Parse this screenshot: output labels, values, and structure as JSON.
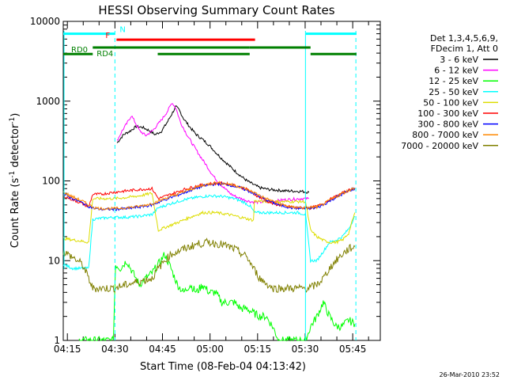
{
  "chart_data": {
    "type": "line",
    "title": "HESSI Observing Summary Count Rates",
    "xlabel": "Start Time (08-Feb-04 04:13:42)",
    "ylabel": "Count Rate (s",
    "ylabel_sup": "-1",
    "ylabel_tail": " detector",
    "ylabel_sup2": "-1",
    "ylabel_end": ")",
    "x_unit": "minutes after 04:13:42",
    "xlim": [
      0,
      100
    ],
    "ylim": [
      1,
      10000
    ],
    "yscale": "log",
    "x_ticks": [
      {
        "v": 1.3,
        "label": "04:15"
      },
      {
        "v": 16.3,
        "label": "04:30"
      },
      {
        "v": 31.3,
        "label": "04:45"
      },
      {
        "v": 46.3,
        "label": "05:00"
      },
      {
        "v": 61.3,
        "label": "05:15"
      },
      {
        "v": 76.3,
        "label": "05:30"
      },
      {
        "v": 91.3,
        "label": "05:45"
      }
    ],
    "y_ticks": [
      {
        "v": 1,
        "label": "1"
      },
      {
        "v": 10,
        "label": "10"
      },
      {
        "v": 100,
        "label": "100"
      },
      {
        "v": 1000,
        "label": "1000"
      },
      {
        "v": 10000,
        "label": "10000"
      }
    ],
    "legend": {
      "placement": "right",
      "header": [
        "Det 1,3,4,5,6,9,",
        "FDecim 1, Att 0"
      ]
    },
    "series": [
      {
        "name": "3 - 6 keV",
        "color": "#000000",
        "points": [
          [
            17.0,
            300
          ],
          [
            19,
            380
          ],
          [
            21,
            420
          ],
          [
            23,
            480
          ],
          [
            25,
            470
          ],
          [
            27,
            430
          ],
          [
            29,
            380
          ],
          [
            31,
            420
          ],
          [
            33,
            560
          ],
          [
            34.5,
            720
          ],
          [
            35.5,
            850
          ],
          [
            36.5,
            780
          ],
          [
            38,
            600
          ],
          [
            40,
            470
          ],
          [
            42,
            380
          ],
          [
            44,
            330
          ],
          [
            46,
            280
          ],
          [
            48,
            230
          ],
          [
            50,
            190
          ],
          [
            52,
            160
          ],
          [
            54,
            135
          ],
          [
            56,
            115
          ],
          [
            58,
            100
          ],
          [
            60,
            90
          ],
          [
            62,
            82
          ],
          [
            65,
            78
          ],
          [
            70,
            75
          ],
          [
            75,
            74
          ],
          [
            77.5,
            72
          ]
        ]
      },
      {
        "name": "6 - 12 keV",
        "color": "#ff00ff",
        "points": [
          [
            17.0,
            320
          ],
          [
            18.5,
            420
          ],
          [
            20,
            520
          ],
          [
            21.5,
            660
          ],
          [
            22.5,
            560
          ],
          [
            24,
            430
          ],
          [
            26,
            370
          ],
          [
            28,
            420
          ],
          [
            30,
            520
          ],
          [
            31.5,
            620
          ],
          [
            33,
            760
          ],
          [
            34.3,
            960
          ],
          [
            35.5,
            820
          ],
          [
            37,
            540
          ],
          [
            39,
            380
          ],
          [
            41,
            280
          ],
          [
            43,
            210
          ],
          [
            45,
            160
          ],
          [
            47,
            120
          ],
          [
            49,
            95
          ],
          [
            51,
            80
          ],
          [
            53,
            68
          ],
          [
            55,
            62
          ],
          [
            57,
            58
          ],
          [
            59,
            55
          ],
          [
            61,
            54
          ],
          [
            65,
            55
          ],
          [
            70,
            58
          ],
          [
            75,
            60
          ],
          [
            77.5,
            60
          ]
        ]
      },
      {
        "name": "12 - 25 keV",
        "color": "#00ff00",
        "points": [
          [
            5,
            1
          ],
          [
            10,
            1
          ],
          [
            15.8,
            1
          ],
          [
            16.5,
            9
          ],
          [
            18,
            8
          ],
          [
            20,
            10
          ],
          [
            22,
            7
          ],
          [
            24,
            5
          ],
          [
            26,
            6
          ],
          [
            28,
            7
          ],
          [
            30,
            9
          ],
          [
            32,
            12
          ],
          [
            34,
            8
          ],
          [
            36,
            5
          ],
          [
            38,
            4
          ],
          [
            40,
            5
          ],
          [
            42,
            4
          ],
          [
            44,
            5
          ],
          [
            46,
            4
          ],
          [
            48,
            4
          ],
          [
            50,
            3
          ],
          [
            52,
            3
          ],
          [
            54,
            3
          ],
          [
            56,
            2.5
          ],
          [
            58,
            2.5
          ],
          [
            60,
            2.2
          ],
          [
            62,
            2
          ],
          [
            64,
            2
          ],
          [
            66,
            1.5
          ],
          [
            68,
            1
          ],
          [
            72,
            1
          ],
          [
            76.5,
            1
          ],
          [
            78,
            1.5
          ],
          [
            80,
            2
          ],
          [
            82,
            3
          ],
          [
            84,
            2
          ],
          [
            86,
            1.5
          ],
          [
            88,
            1.5
          ],
          [
            90,
            1.8
          ],
          [
            92,
            1.6
          ]
        ]
      },
      {
        "name": "25 - 50 keV",
        "color": "#00ffff",
        "points": [
          [
            0,
            9
          ],
          [
            3,
            8
          ],
          [
            6,
            8
          ],
          [
            8,
            8
          ],
          [
            9.3,
            33
          ],
          [
            12,
            34
          ],
          [
            16,
            35
          ],
          [
            20,
            35
          ],
          [
            24,
            36
          ],
          [
            28,
            38
          ],
          [
            30,
            46
          ],
          [
            34,
            52
          ],
          [
            38,
            58
          ],
          [
            42,
            62
          ],
          [
            46,
            65
          ],
          [
            50,
            64
          ],
          [
            54,
            60
          ],
          [
            57,
            54
          ],
          [
            59,
            48
          ],
          [
            60.3,
            40
          ],
          [
            62,
            40
          ],
          [
            66,
            40
          ],
          [
            70,
            40
          ],
          [
            74,
            40
          ],
          [
            76.4,
            38
          ],
          [
            78,
            10
          ],
          [
            80,
            10
          ],
          [
            82,
            13
          ],
          [
            84,
            17
          ],
          [
            86,
            18
          ],
          [
            88,
            20
          ],
          [
            90,
            25
          ],
          [
            92,
            36
          ]
        ]
      },
      {
        "name": "50 - 100 keV",
        "color": "#dddd00",
        "points": [
          [
            0,
            19
          ],
          [
            4,
            18
          ],
          [
            8,
            17
          ],
          [
            9.3,
            60
          ],
          [
            12,
            60
          ],
          [
            16,
            60
          ],
          [
            20,
            62
          ],
          [
            24,
            65
          ],
          [
            28,
            70
          ],
          [
            30,
            24
          ],
          [
            32,
            26
          ],
          [
            36,
            30
          ],
          [
            40,
            35
          ],
          [
            44,
            40
          ],
          [
            48,
            40
          ],
          [
            52,
            38
          ],
          [
            56,
            35
          ],
          [
            60,
            32
          ],
          [
            60.3,
            56
          ],
          [
            64,
            55
          ],
          [
            68,
            55
          ],
          [
            72,
            55
          ],
          [
            76.4,
            55
          ],
          [
            78,
            24
          ],
          [
            80,
            20
          ],
          [
            82,
            18
          ],
          [
            84,
            17
          ],
          [
            86,
            17
          ],
          [
            88,
            18
          ],
          [
            90,
            22
          ],
          [
            92,
            40
          ]
        ]
      },
      {
        "name": "100 - 300 keV",
        "color": "#ff0000",
        "points": [
          [
            0,
            65
          ],
          [
            3,
            58
          ],
          [
            6,
            52
          ],
          [
            8,
            47
          ],
          [
            9.3,
            68
          ],
          [
            12,
            68
          ],
          [
            16,
            72
          ],
          [
            20,
            75
          ],
          [
            24,
            78
          ],
          [
            28,
            80
          ],
          [
            30,
            60
          ],
          [
            34,
            68
          ],
          [
            38,
            78
          ],
          [
            42,
            86
          ],
          [
            46,
            92
          ],
          [
            50,
            94
          ],
          [
            54,
            88
          ],
          [
            58,
            78
          ],
          [
            62,
            62
          ],
          [
            66,
            52
          ],
          [
            70,
            48
          ],
          [
            74,
            46
          ],
          [
            76.4,
            46
          ],
          [
            78,
            46
          ],
          [
            80,
            48
          ],
          [
            82,
            52
          ],
          [
            84,
            58
          ],
          [
            86,
            64
          ],
          [
            88,
            70
          ],
          [
            90,
            76
          ],
          [
            92,
            82
          ]
        ]
      },
      {
        "name": "300 - 800 keV",
        "color": "#0000ff",
        "points": [
          [
            0,
            68
          ],
          [
            3,
            60
          ],
          [
            6,
            53
          ],
          [
            8,
            48
          ],
          [
            10,
            45
          ],
          [
            12,
            44
          ],
          [
            16,
            44
          ],
          [
            20,
            45
          ],
          [
            24,
            47
          ],
          [
            28,
            50
          ],
          [
            32,
            58
          ],
          [
            36,
            66
          ],
          [
            40,
            76
          ],
          [
            44,
            86
          ],
          [
            48,
            92
          ],
          [
            52,
            90
          ],
          [
            56,
            82
          ],
          [
            60,
            70
          ],
          [
            64,
            58
          ],
          [
            68,
            50
          ],
          [
            72,
            46
          ],
          [
            76,
            45
          ],
          [
            80,
            46
          ],
          [
            82,
            50
          ],
          [
            84,
            56
          ],
          [
            86,
            62
          ],
          [
            88,
            68
          ],
          [
            90,
            75
          ],
          [
            92,
            80
          ]
        ]
      },
      {
        "name": "800 - 7000 keV",
        "color": "#ff8800",
        "points": [
          [
            0,
            72
          ],
          [
            3,
            63
          ],
          [
            6,
            56
          ],
          [
            8,
            50
          ],
          [
            10,
            46
          ],
          [
            12,
            45
          ],
          [
            16,
            45
          ],
          [
            20,
            46
          ],
          [
            24,
            48
          ],
          [
            28,
            52
          ],
          [
            32,
            60
          ],
          [
            36,
            68
          ],
          [
            40,
            78
          ],
          [
            44,
            88
          ],
          [
            48,
            95
          ],
          [
            52,
            92
          ],
          [
            56,
            84
          ],
          [
            60,
            72
          ],
          [
            64,
            60
          ],
          [
            68,
            52
          ],
          [
            72,
            47
          ],
          [
            76,
            46
          ],
          [
            80,
            47
          ],
          [
            82,
            51
          ],
          [
            84,
            57
          ],
          [
            86,
            63
          ],
          [
            88,
            70
          ],
          [
            90,
            76
          ],
          [
            92,
            82
          ]
        ]
      },
      {
        "name": "7000 - 20000 keV",
        "color": "#808000",
        "points": [
          [
            0,
            13
          ],
          [
            3,
            11
          ],
          [
            6,
            9
          ],
          [
            8,
            6
          ],
          [
            9.3,
            4.5
          ],
          [
            12,
            4.5
          ],
          [
            16,
            4.5
          ],
          [
            20,
            5
          ],
          [
            24,
            5.5
          ],
          [
            28,
            6
          ],
          [
            30,
            8
          ],
          [
            32,
            10
          ],
          [
            34,
            12
          ],
          [
            38,
            14
          ],
          [
            42,
            16
          ],
          [
            46,
            17
          ],
          [
            50,
            16
          ],
          [
            54,
            14
          ],
          [
            58,
            11
          ],
          [
            60,
            8
          ],
          [
            62,
            6
          ],
          [
            66,
            4.5
          ],
          [
            70,
            4.5
          ],
          [
            74,
            4.5
          ],
          [
            76.4,
            4.5
          ],
          [
            78,
            4.6
          ],
          [
            80,
            5
          ],
          [
            82,
            6
          ],
          [
            84,
            8
          ],
          [
            86,
            10
          ],
          [
            88,
            12
          ],
          [
            90,
            14
          ],
          [
            92,
            15
          ]
        ]
      }
    ],
    "flags": [
      {
        "label": "N",
        "color": "#00ffff",
        "y": 7000,
        "segments": [
          [
            0,
            16.3
          ],
          [
            76.5,
            92.5
          ]
        ]
      },
      {
        "label": "F",
        "color": "#ff0000",
        "y": 5900,
        "segments": [
          [
            16.8,
            60.5
          ]
        ]
      },
      {
        "label": "RD0",
        "color": "#008000",
        "y": 3900,
        "segments": [
          [
            0,
            9.3
          ]
        ]
      },
      {
        "label": "RD4",
        "color": "#008000",
        "y": 4700,
        "segments": [
          [
            9.3,
            29.8
          ],
          [
            29.8,
            58.8
          ],
          [
            58.8,
            78
          ]
        ]
      },
      {
        "label": "",
        "color": "#008000",
        "y": 3900,
        "segments": [
          [
            29.8,
            58.8
          ],
          [
            78,
            92.5
          ]
        ]
      }
    ],
    "cyan_vlines": [
      {
        "x": 16.3,
        "style": "dashed"
      },
      {
        "x": 76.4,
        "style": "solid"
      },
      {
        "x": 92.3,
        "style": "dashed"
      }
    ],
    "timestamp": "26-Mar-2010 23:52"
  }
}
